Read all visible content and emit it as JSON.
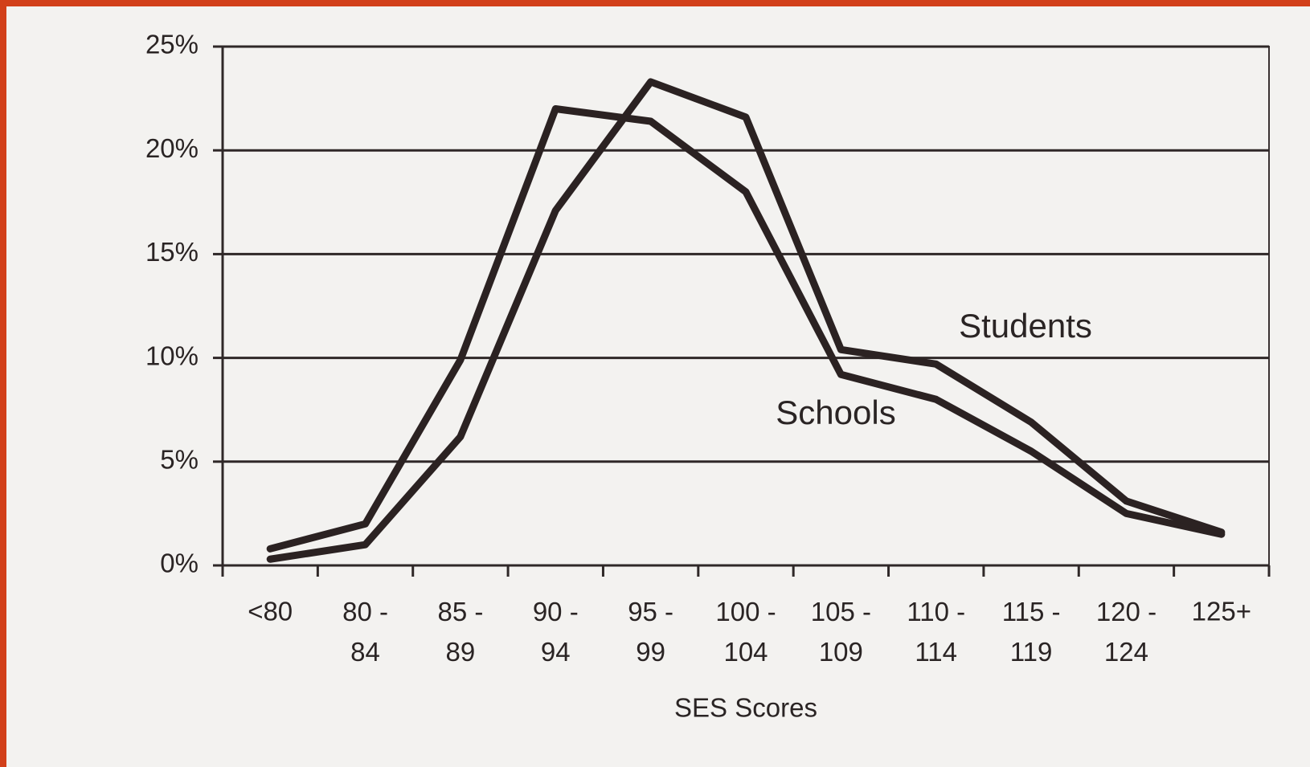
{
  "chart_data": {
    "type": "line",
    "x_label": "SES Scores",
    "categories": [
      "<80",
      "80 - 84",
      "85 - 89",
      "90 - 94",
      "95 - 99",
      "100 - 104",
      "105 - 109",
      "110 - 114",
      "115 - 119",
      "120 - 124",
      "125+"
    ],
    "series": [
      {
        "name": "Schools",
        "color": "#2b2222",
        "values": [
          0.8,
          2.0,
          9.9,
          22.0,
          21.4,
          18.0,
          9.2,
          8.0,
          5.5,
          2.5,
          1.5
        ]
      },
      {
        "name": "Students",
        "color": "#2b2222",
        "values": [
          0.3,
          1.0,
          6.2,
          17.1,
          23.3,
          21.6,
          10.4,
          9.7,
          6.9,
          3.1,
          1.6
        ]
      }
    ],
    "ylim": [
      0,
      25
    ],
    "yticks": [
      {
        "value": 0,
        "label": "0%"
      },
      {
        "value": 5,
        "label": "5%"
      },
      {
        "value": 10,
        "label": "10%"
      },
      {
        "value": 15,
        "label": "15%"
      },
      {
        "value": 20,
        "label": "20%"
      },
      {
        "value": 25,
        "label": "25%"
      }
    ],
    "grid": true
  }
}
